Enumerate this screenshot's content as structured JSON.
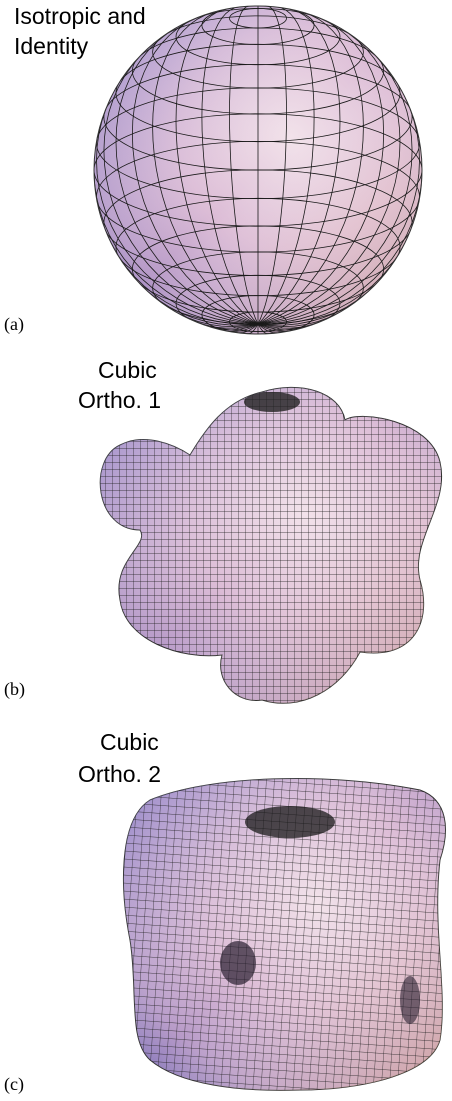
{
  "panels": [
    {
      "title_lines": [
        "Isotropic and",
        "Identity"
      ],
      "label": "(a)"
    },
    {
      "title_lines": [
        "Cubic",
        "Ortho. 1"
      ],
      "label": "(b)"
    },
    {
      "title_lines": [
        "Cubic",
        "Ortho. 2"
      ],
      "label": "(c)"
    }
  ]
}
